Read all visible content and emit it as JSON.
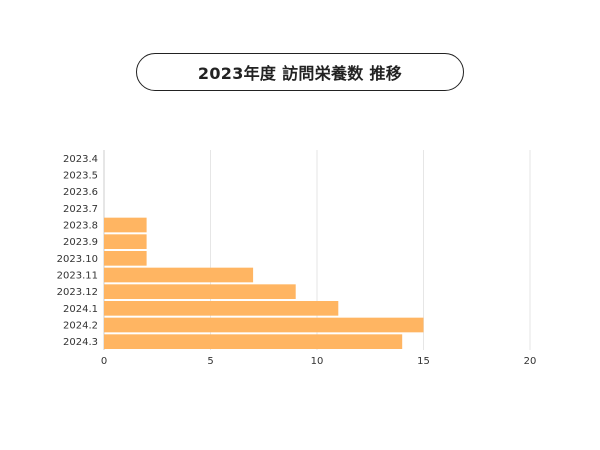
{
  "chart_data": {
    "type": "bar",
    "orientation": "horizontal",
    "title": "2023年度 訪問栄養数 推移",
    "categories": [
      "2023.4",
      "2023.5",
      "2023.6",
      "2023.7",
      "2023.8",
      "2023.9",
      "2023.10",
      "2023.11",
      "2023.12",
      "2024.1",
      "2024.2",
      "2024.3"
    ],
    "values": [
      0,
      0,
      0,
      0,
      2,
      2,
      2,
      7,
      9,
      11,
      15,
      14
    ],
    "xlim": [
      0,
      20
    ],
    "xticks": [
      0,
      5,
      10,
      15,
      20
    ],
    "grid": true,
    "bar_color": "#FFB562",
    "grid_color": "#e6e6e6"
  }
}
